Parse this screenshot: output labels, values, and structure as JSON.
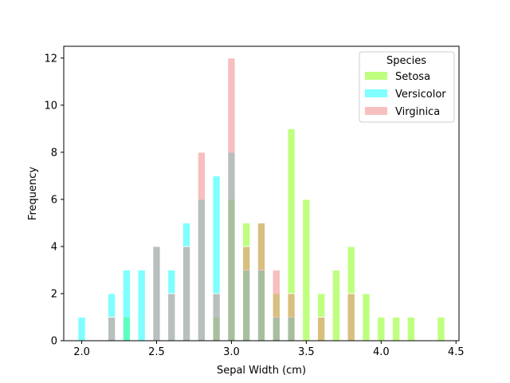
{
  "chart_data": {
    "type": "bar",
    "title": "",
    "xlabel": "Sepal Width (cm)",
    "ylabel": "Frequency",
    "xlim": [
      1.88,
      4.52
    ],
    "ylim": [
      0,
      12.5
    ],
    "xticks": [
      2.0,
      2.5,
      3.0,
      3.5,
      4.0,
      4.5
    ],
    "yticks": [
      0,
      2,
      4,
      6,
      8,
      10,
      12
    ],
    "bin_width": 0.05,
    "grid": false,
    "legend": {
      "title": "Species",
      "placement": "top-right"
    },
    "series": [
      {
        "name": "Setosa",
        "color": "#7fff00",
        "alpha": 0.5,
        "x": [
          2.3,
          2.9,
          3.0,
          3.1,
          3.2,
          3.3,
          3.4,
          3.5,
          3.6,
          3.7,
          3.8,
          3.9,
          4.0,
          4.1,
          4.2,
          4.4
        ],
        "values": [
          1,
          1,
          6,
          5,
          5,
          2,
          9,
          6,
          2,
          3,
          4,
          2,
          1,
          1,
          1,
          1
        ]
      },
      {
        "name": "Versicolor",
        "color": "#00ffff",
        "alpha": 0.5,
        "x": [
          2.0,
          2.2,
          2.3,
          2.4,
          2.5,
          2.6,
          2.7,
          2.8,
          2.9,
          3.0,
          3.1,
          3.2,
          3.3,
          3.4
        ],
        "values": [
          1,
          2,
          3,
          3,
          4,
          3,
          5,
          6,
          7,
          8,
          3,
          3,
          1,
          1
        ]
      },
      {
        "name": "Virginica",
        "color": "#f08080",
        "alpha": 0.5,
        "x": [
          2.2,
          2.5,
          2.6,
          2.7,
          2.8,
          2.9,
          3.0,
          3.1,
          3.2,
          3.3,
          3.4,
          3.6,
          3.8
        ],
        "values": [
          1,
          4,
          2,
          4,
          8,
          2,
          12,
          4,
          5,
          3,
          2,
          1,
          2
        ]
      }
    ]
  }
}
